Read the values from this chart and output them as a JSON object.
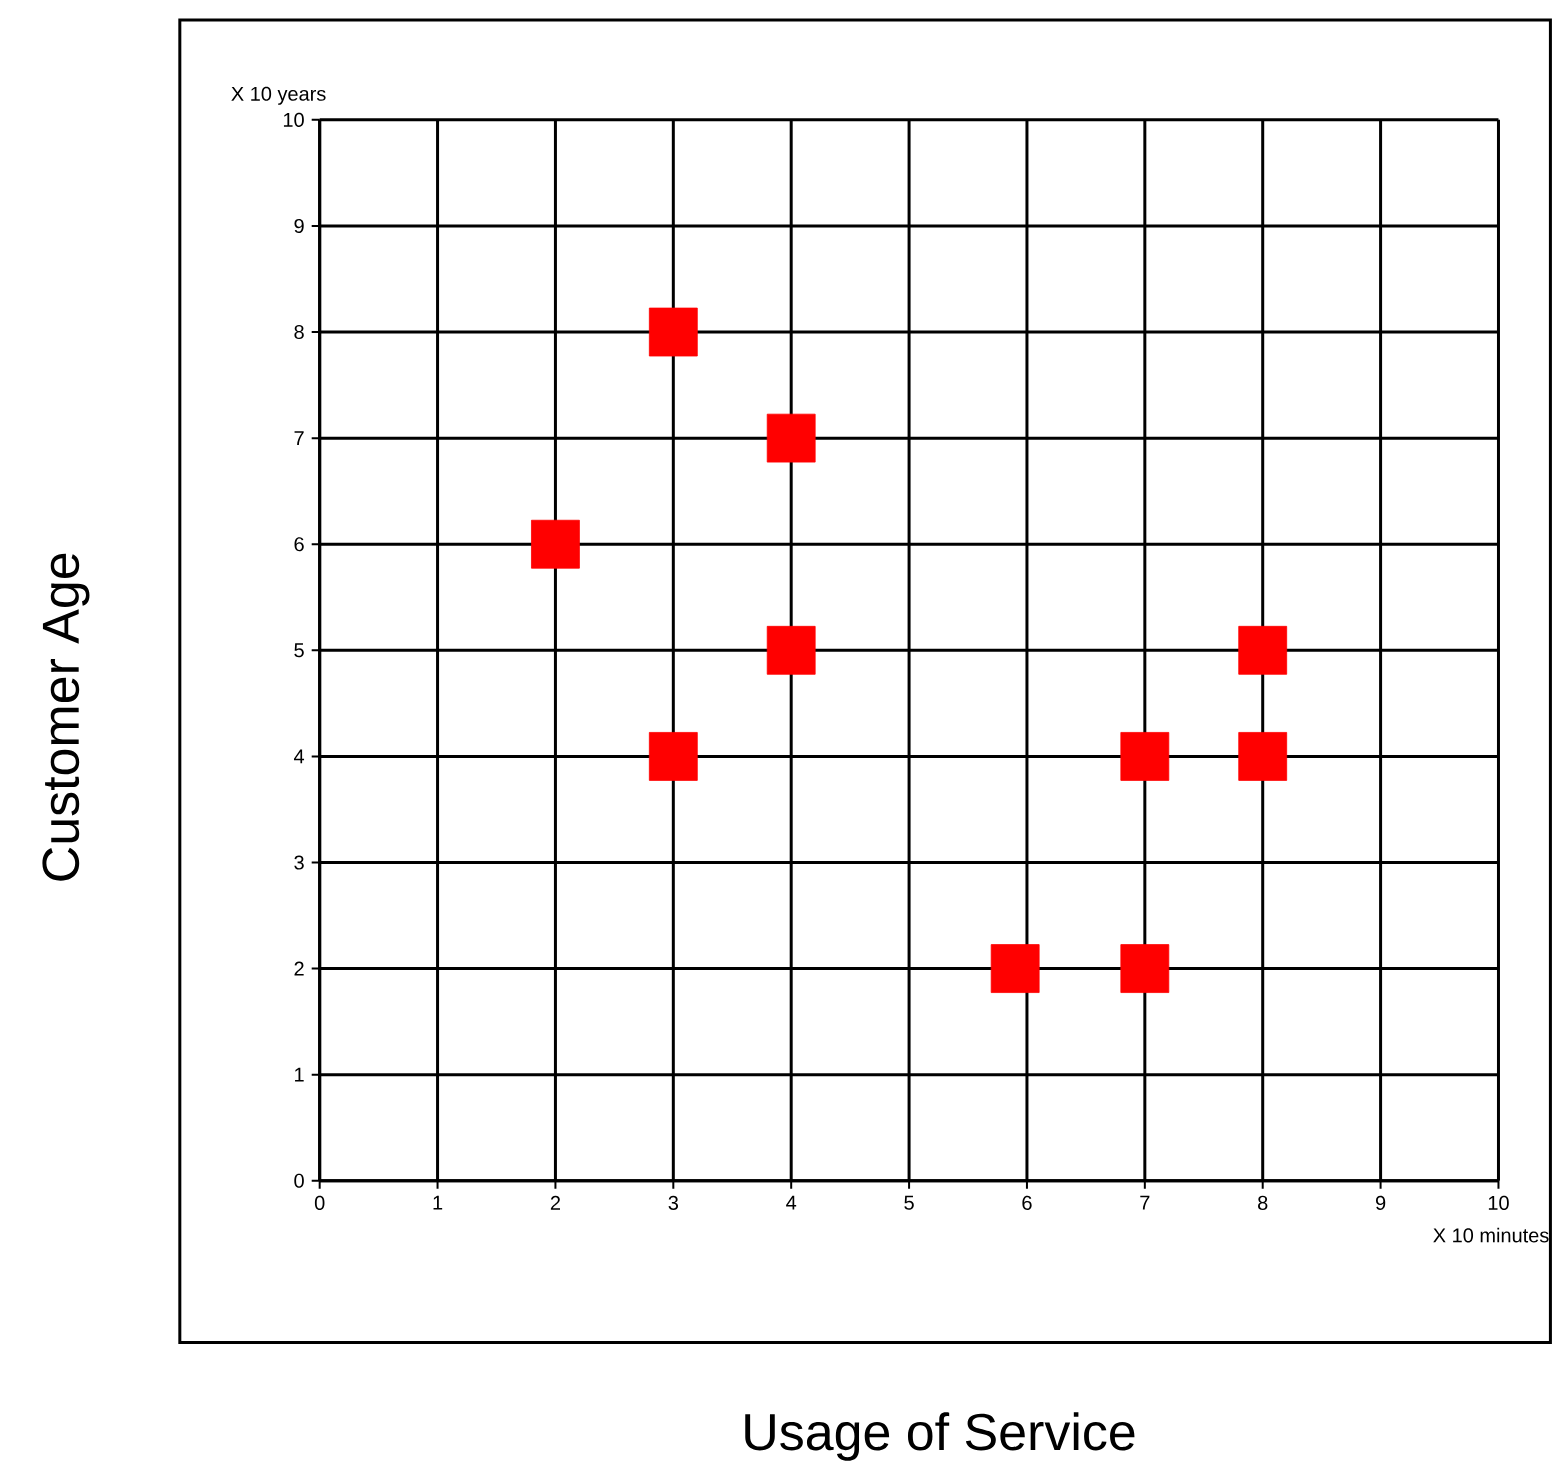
{
  "chart_data": {
    "type": "scatter",
    "xlabel": "Usage of Service",
    "ylabel": "Customer Age",
    "annotations": [
      "X 10 years",
      "X 10 minutes"
    ],
    "x": [
      2,
      3,
      4,
      4,
      3,
      5.9,
      7,
      7,
      8,
      8
    ],
    "values": [
      6,
      8,
      7,
      5,
      4,
      2,
      4,
      2,
      5,
      4
    ],
    "color": "#ff0000",
    "marker": "square",
    "xlim": [
      0,
      10
    ],
    "ylim": [
      0,
      10
    ],
    "xticks": [
      0,
      1,
      2,
      3,
      4,
      5,
      6,
      7,
      8,
      9,
      10
    ],
    "yticks": [
      0,
      1,
      2,
      3,
      4,
      5,
      6,
      7,
      8,
      9,
      10
    ],
    "grid": true
  }
}
